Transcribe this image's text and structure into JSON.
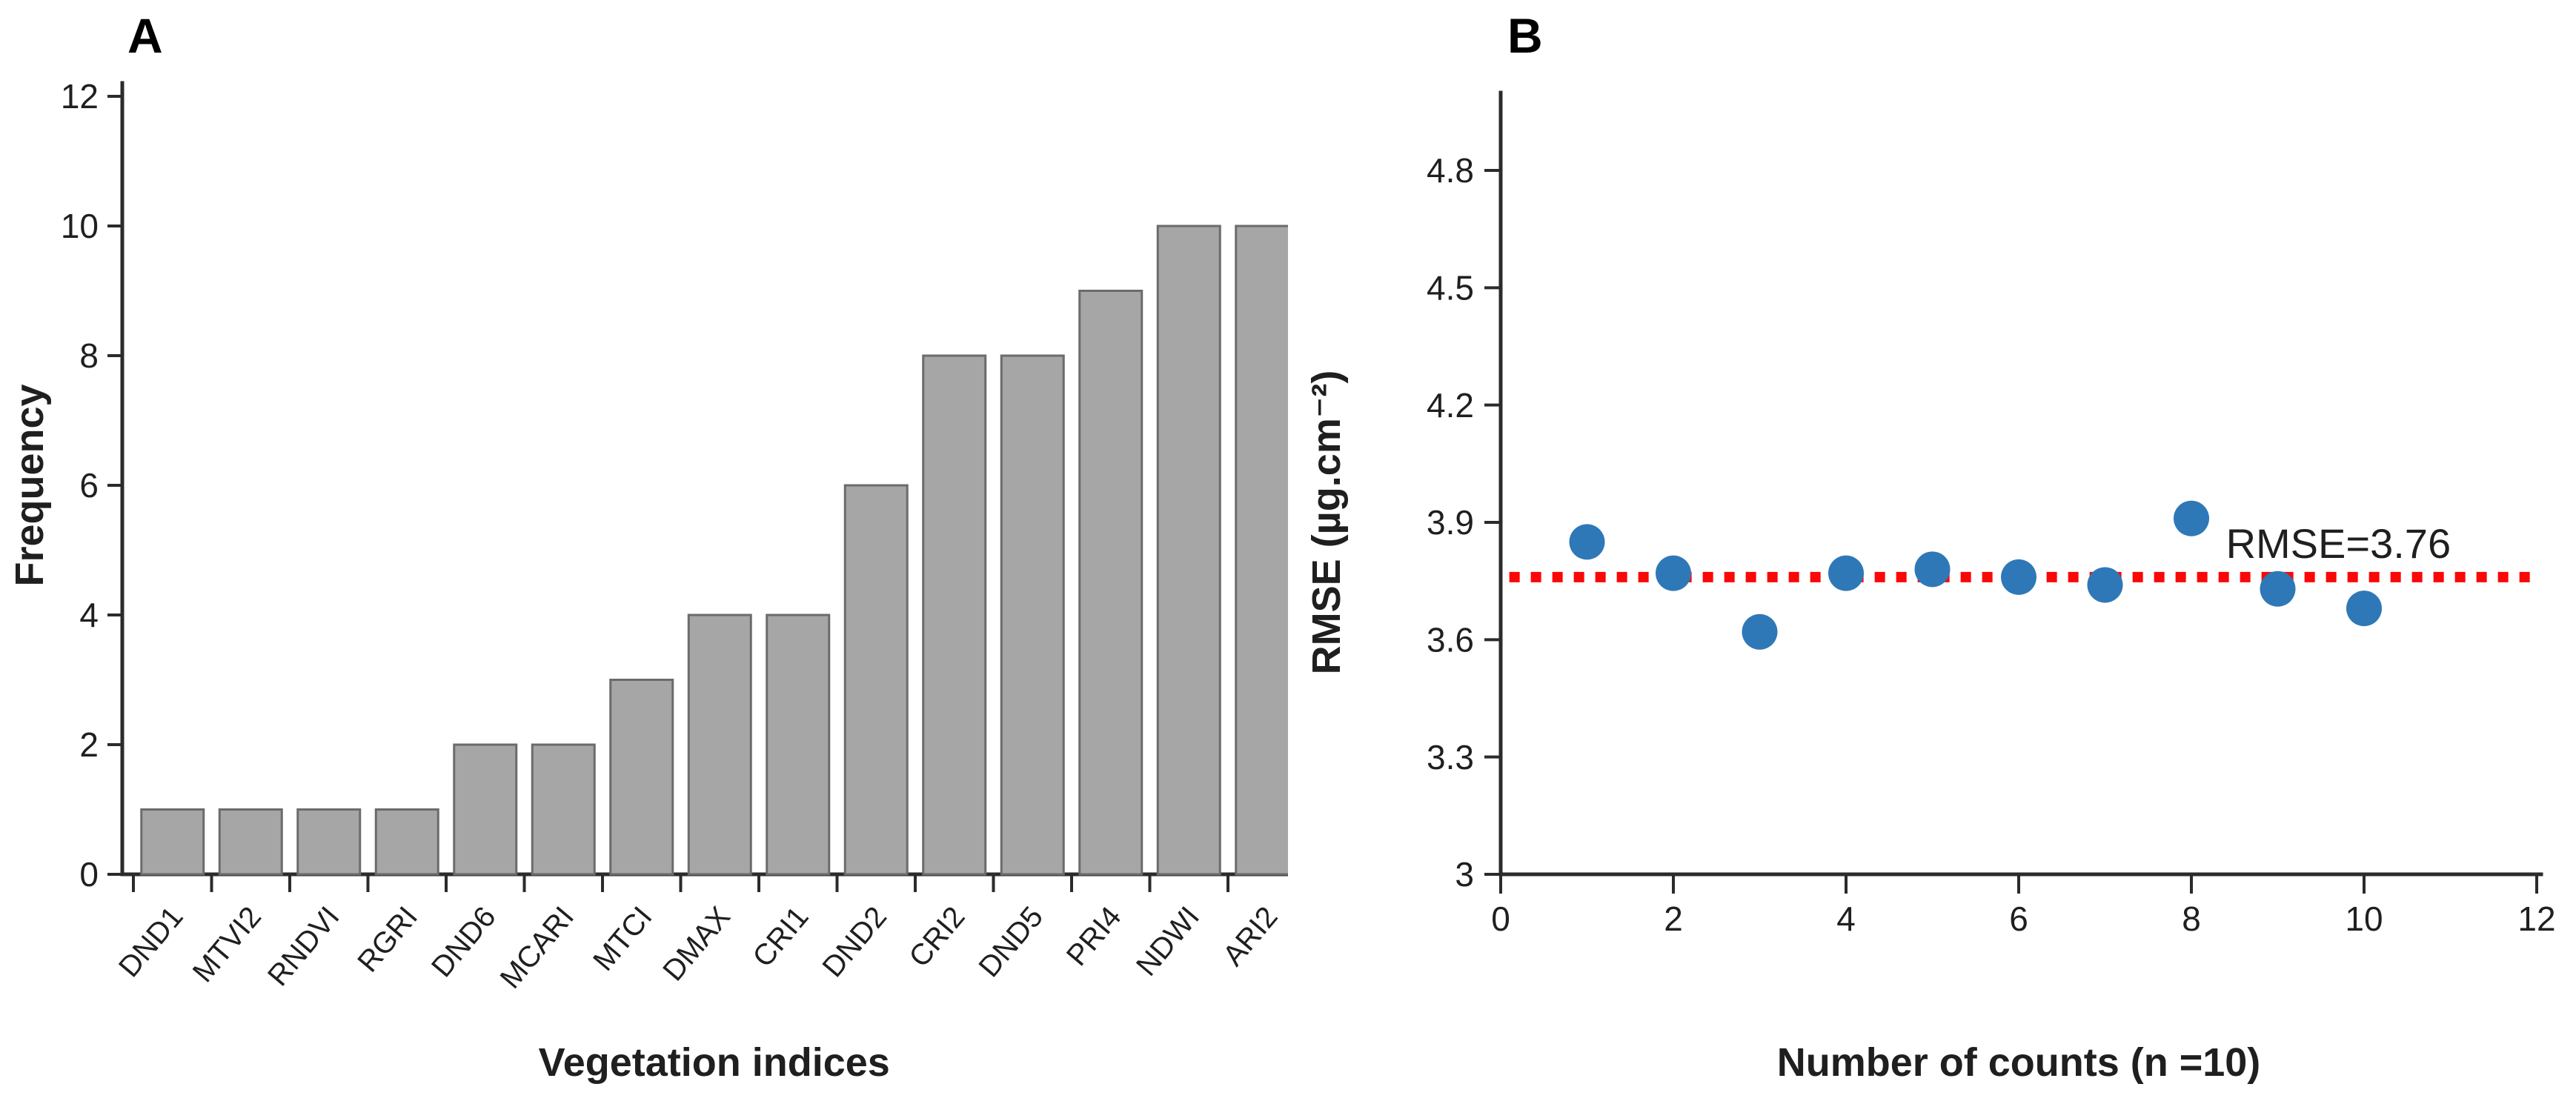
{
  "figure": {
    "background": "#ffffff",
    "panels": [
      {
        "label": "A"
      },
      {
        "label": "B"
      }
    ]
  },
  "colors": {
    "bar_fill": "#a6a6a6",
    "bar_stroke": "#6b6b6b",
    "axis": "#2b2b2b",
    "text": "#1f1f1f",
    "marker_blue": "#2e78b8",
    "refline_red": "#fb0707"
  },
  "chart_data": [
    {
      "type": "bar",
      "panel_label": "A",
      "title": "",
      "xlabel": "Vegetation indices",
      "ylabel": "Frequency",
      "categories": [
        "DND1",
        "MTVI2",
        "RNDVI",
        "RGRI",
        "DND6",
        "MCARI",
        "MTCI",
        "DMAX",
        "CRI1",
        "DND2",
        "CRI2",
        "DND5",
        "PRI4",
        "NDWI",
        "ARI2"
      ],
      "values": [
        1,
        1,
        1,
        1,
        2,
        2,
        3,
        4,
        4,
        6,
        8,
        8,
        9,
        10,
        10
      ],
      "ylim": [
        0,
        12
      ],
      "yticks": [
        0,
        2,
        4,
        6,
        8,
        10,
        12
      ],
      "grid": false,
      "legend": "none"
    },
    {
      "type": "scatter",
      "panel_label": "B",
      "title": "",
      "xlabel": "Number of counts (n =10)",
      "ylabel": "RMSE (µg.cm⁻²)",
      "x": [
        1,
        2,
        3,
        4,
        5,
        6,
        7,
        8,
        9,
        10
      ],
      "y": [
        3.85,
        3.77,
        3.62,
        3.77,
        3.78,
        3.76,
        3.74,
        3.91,
        3.73,
        3.68
      ],
      "xlim": [
        0,
        12
      ],
      "ylim": [
        3,
        4.8
      ],
      "xticks": [
        0,
        2,
        4,
        6,
        8,
        10,
        12
      ],
      "yticks": [
        3,
        3.3,
        3.6,
        3.9,
        4.2,
        4.5,
        4.8
      ],
      "ytick_labels": [
        "3",
        "3.3",
        "3.6",
        "3.9",
        "4.2",
        "4.5",
        "4.8"
      ],
      "grid": false,
      "legend": "none",
      "refline": {
        "value": 3.76,
        "label": "RMSE=3.76",
        "style": "dotted"
      }
    }
  ]
}
